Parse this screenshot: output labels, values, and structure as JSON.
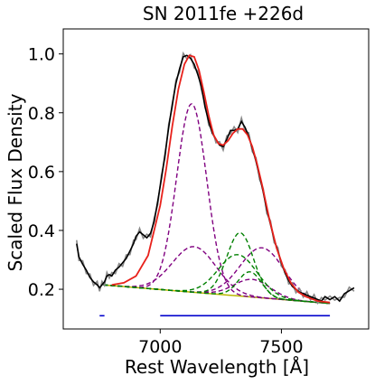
{
  "chart_data": {
    "type": "line",
    "title": "SN 2011fe  +226d",
    "xlabel": "Rest Wavelength [Å]",
    "ylabel": "Scaled Flux Density",
    "xlim": [
      6600,
      7860
    ],
    "ylim": [
      0.065,
      1.085
    ],
    "x_ticks": [
      7000,
      7500
    ],
    "x_tick_labels": [
      "7000",
      "7500"
    ],
    "y_ticks": [
      0.2,
      0.4,
      0.6,
      0.8,
      1.0
    ],
    "y_tick_labels": [
      "0.2",
      "0.4",
      "0.6",
      "0.8",
      "1.0"
    ],
    "grid": false,
    "colors": {
      "observed": "#000000",
      "observed_raw": "#888888",
      "fit": "#e8211b",
      "fe_components": "#800080",
      "co_components": "#008000",
      "continuum": "#b8b800",
      "fit_regions": "#0000cc"
    },
    "continuum": {
      "x": [
        6765,
        7700
      ],
      "y": [
        0.215,
        0.152
      ]
    },
    "fit_regions": [
      {
        "x": [
          6750,
          6770
        ],
        "y": 0.11
      },
      {
        "x": [
          7000,
          7700
        ],
        "y": 0.11
      }
    ],
    "observed": {
      "x": [
        6655,
        6665,
        6680,
        6695,
        6710,
        6725,
        6740,
        6750,
        6760,
        6770,
        6780,
        6790,
        6800,
        6815,
        6830,
        6845,
        6860,
        6875,
        6890,
        6900,
        6915,
        6930,
        6945,
        6960,
        6975,
        6990,
        7005,
        7020,
        7035,
        7050,
        7065,
        7080,
        7095,
        7110,
        7125,
        7140,
        7155,
        7170,
        7185,
        7200,
        7215,
        7230,
        7245,
        7260,
        7275,
        7290,
        7305,
        7320,
        7335,
        7350,
        7365,
        7380,
        7395,
        7410,
        7425,
        7440,
        7455,
        7470,
        7485,
        7500,
        7515,
        7530,
        7545,
        7560,
        7575,
        7590,
        7605,
        7620,
        7635,
        7650,
        7665,
        7680,
        7700,
        7720,
        7740,
        7760,
        7780,
        7800
      ],
      "y": [
        0.355,
        0.31,
        0.285,
        0.265,
        0.24,
        0.225,
        0.215,
        0.205,
        0.215,
        0.225,
        0.245,
        0.25,
        0.245,
        0.265,
        0.275,
        0.29,
        0.305,
        0.33,
        0.355,
        0.38,
        0.395,
        0.385,
        0.375,
        0.39,
        0.43,
        0.5,
        0.575,
        0.66,
        0.75,
        0.83,
        0.9,
        0.95,
        0.99,
        0.995,
        0.985,
        0.965,
        0.93,
        0.89,
        0.82,
        0.77,
        0.73,
        0.71,
        0.69,
        0.685,
        0.71,
        0.74,
        0.74,
        0.745,
        0.77,
        0.75,
        0.72,
        0.68,
        0.635,
        0.585,
        0.53,
        0.47,
        0.42,
        0.37,
        0.33,
        0.29,
        0.255,
        0.23,
        0.21,
        0.2,
        0.19,
        0.185,
        0.18,
        0.175,
        0.17,
        0.165,
        0.16,
        0.175,
        0.165,
        0.175,
        0.16,
        0.185,
        0.195,
        0.205
      ]
    },
    "fit": {
      "x": [
        6800,
        6850,
        6900,
        6950,
        7000,
        7025,
        7050,
        7075,
        7100,
        7120,
        7140,
        7160,
        7180,
        7200,
        7220,
        7240,
        7260,
        7280,
        7300,
        7320,
        7340,
        7360,
        7380,
        7400,
        7420,
        7450,
        7480,
        7510,
        7540,
        7570,
        7600,
        7650,
        7700
      ],
      "y": [
        0.215,
        0.222,
        0.245,
        0.315,
        0.485,
        0.61,
        0.755,
        0.88,
        0.965,
        0.995,
        0.99,
        0.945,
        0.87,
        0.79,
        0.725,
        0.695,
        0.69,
        0.705,
        0.73,
        0.745,
        0.745,
        0.725,
        0.685,
        0.625,
        0.555,
        0.44,
        0.34,
        0.27,
        0.22,
        0.19,
        0.175,
        0.16,
        0.155
      ]
    },
    "series": [
      {
        "group": "fe",
        "amplitude": 0.64,
        "center": 7130,
        "sigma": 62
      },
      {
        "group": "fe",
        "amplitude": 0.155,
        "center": 7140,
        "sigma": 90
      },
      {
        "group": "fe",
        "amplitude": 0.17,
        "center": 7420,
        "sigma": 90
      },
      {
        "group": "fe",
        "amplitude": 0.06,
        "center": 7380,
        "sigma": 75
      },
      {
        "group": "co",
        "amplitude": 0.215,
        "center": 7330,
        "sigma": 55
      },
      {
        "group": "co",
        "amplitude": 0.14,
        "center": 7320,
        "sigma": 80
      },
      {
        "group": "co",
        "amplitude": 0.085,
        "center": 7370,
        "sigma": 48
      }
    ]
  }
}
